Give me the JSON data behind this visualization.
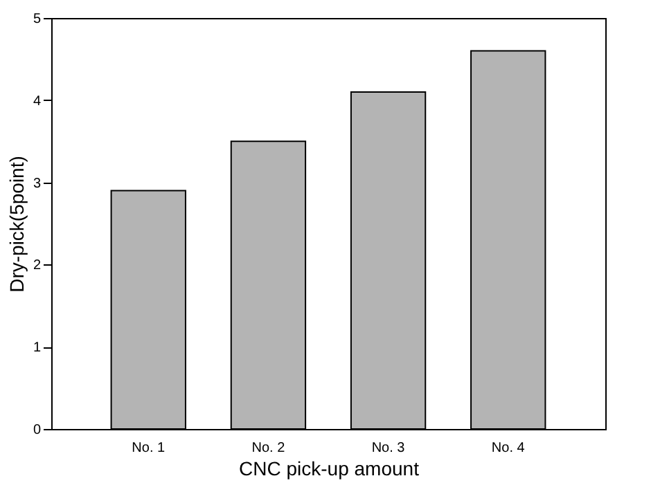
{
  "chart_data": {
    "type": "bar",
    "xlabel": "CNC pick-up amount",
    "ylabel": "Dry-pick(5point)",
    "categories": [
      "No. 1",
      "No. 2",
      "No. 3",
      "No. 4"
    ],
    "values": [
      2.9,
      3.5,
      4.1,
      4.6
    ],
    "color": "#b4b4b4",
    "ylim": [
      0,
      5
    ],
    "yticks": [
      0,
      1,
      2,
      3,
      4,
      5
    ],
    "grid": false
  }
}
